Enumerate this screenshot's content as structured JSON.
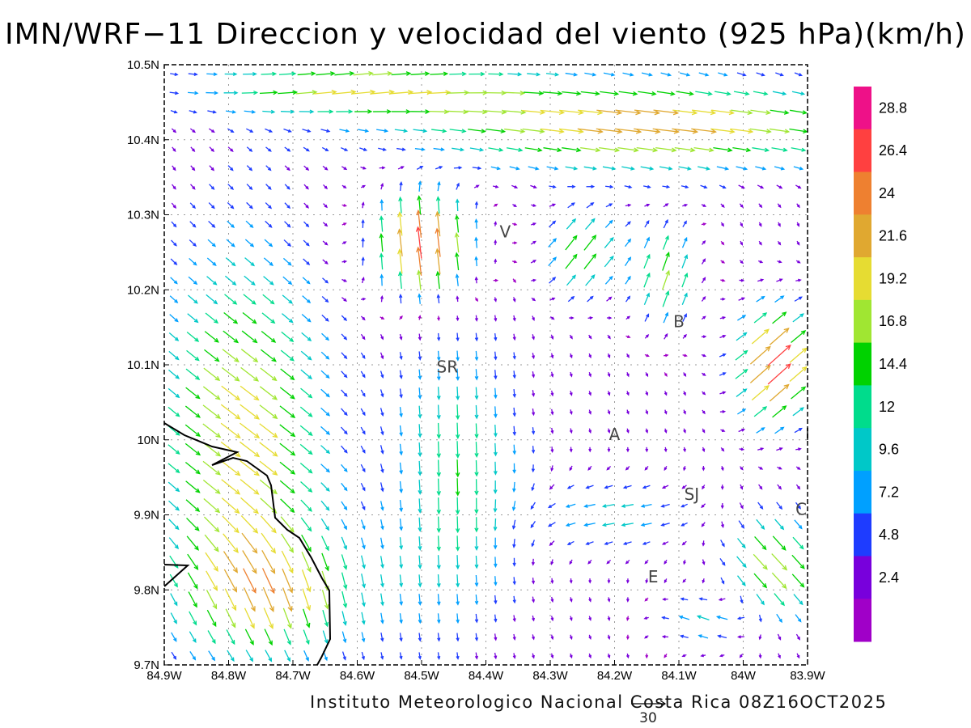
{
  "title": "IMN/WRF−11 Direccion y velocidad del viento (925 hPa)(km/h)",
  "credit": "Instituto Meteorologico Nacional Costa Rica 08Z16OCT2025",
  "reference_vector": {
    "label": "30",
    "speed_kmh": 30
  },
  "axes": {
    "x_labels": [
      "84.9W",
      "84.8W",
      "84.7W",
      "84.6W",
      "84.5W",
      "84.4W",
      "84.3W",
      "84.2W",
      "84.1W",
      "84W",
      "83.9W"
    ],
    "y_labels": [
      "10.5N",
      "10.4N",
      "10.3N",
      "10.2N",
      "10.1N",
      "10N",
      "9.9N",
      "9.8N",
      "9.7N"
    ],
    "lon_range": [
      -84.9,
      -83.9
    ],
    "lat_range": [
      9.7,
      10.5
    ]
  },
  "colorbar": {
    "labels": [
      "28.8",
      "26.4",
      "24",
      "21.6",
      "19.2",
      "16.8",
      "14.4",
      "12",
      "9.6",
      "7.2",
      "4.8",
      "2.4"
    ],
    "colors": [
      "#ee1188",
      "#ff4040",
      "#ee8030",
      "#e0a830",
      "#e6dc32",
      "#a0e632",
      "#00d200",
      "#00dc8c",
      "#00c8c8",
      "#00a0ff",
      "#1e3cff",
      "#7800dc",
      "#a000c8"
    ]
  },
  "places": [
    {
      "label": "V",
      "lon": -84.37,
      "lat": 10.27
    },
    {
      "label": "SR",
      "lon": -84.46,
      "lat": 10.09
    },
    {
      "label": "B",
      "lon": -84.1,
      "lat": 10.15
    },
    {
      "label": "A",
      "lon": -84.2,
      "lat": 10.0
    },
    {
      "label": "SJ",
      "lon": -84.08,
      "lat": 9.92
    },
    {
      "label": "C",
      "lon": -83.91,
      "lat": 9.9
    },
    {
      "label": "E",
      "lon": -84.14,
      "lat": 9.81
    },
    {
      "label": "I",
      "lon": -83.9,
      "lat": 10.0
    }
  ],
  "map_style": {
    "grid_lines": "dotted",
    "field": "wind-vectors",
    "coastline": "black"
  }
}
